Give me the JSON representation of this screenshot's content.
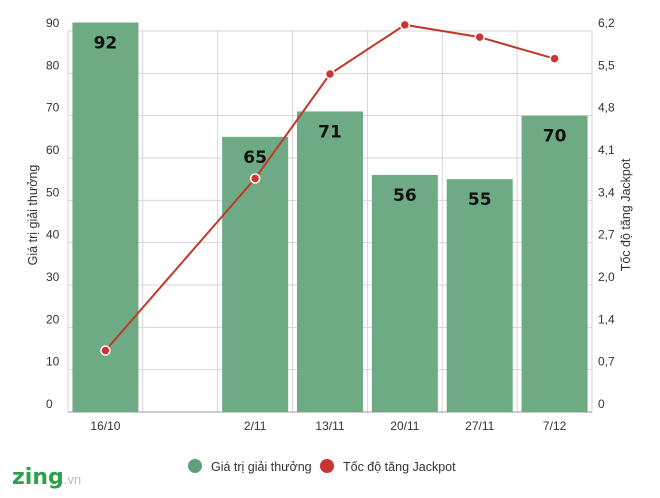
{
  "chart_data": {
    "type": "bar",
    "categories": [
      "16/10",
      "",
      "2/11",
      "13/11",
      "20/11",
      "27/11",
      "7/12"
    ],
    "series": [
      {
        "name": "Giá trị giải thưởng",
        "type": "bar",
        "axis": "left",
        "values": [
          92,
          null,
          65,
          71,
          56,
          55,
          70
        ]
      },
      {
        "name": "Tốc độ tăng Jackpot",
        "type": "line",
        "axis": "right",
        "values": [
          1.0,
          null,
          3.8,
          5.5,
          6.3,
          6.1,
          5.75
        ]
      }
    ],
    "bar_labels": [
      "92",
      "",
      "65",
      "71",
      "56",
      "55",
      "70"
    ],
    "ylabel_left": "Giá trị giải thưởng",
    "ylabel_right": "Tốc độ tăng Jackpot",
    "ylim_left": [
      0,
      90
    ],
    "ylim_right": [
      0,
      6.2
    ],
    "yticks_left": [
      "0",
      "10",
      "20",
      "30",
      "40",
      "50",
      "60",
      "70",
      "80",
      "90"
    ],
    "yticks_right": [
      "0",
      "0,7",
      "1,4",
      "2,0",
      "2,7",
      "3,4",
      "4,1",
      "4,8",
      "5,5",
      "6,2"
    ],
    "grid": true,
    "legend_position": "bottom",
    "colors": {
      "bar": "#6eab85",
      "line": "#c0392b",
      "marker": "#cc3333",
      "legend_bar": "#5da178",
      "legend_line": "#cc3333"
    }
  },
  "logo": {
    "brand": "zing",
    "suffix": ".vn"
  }
}
